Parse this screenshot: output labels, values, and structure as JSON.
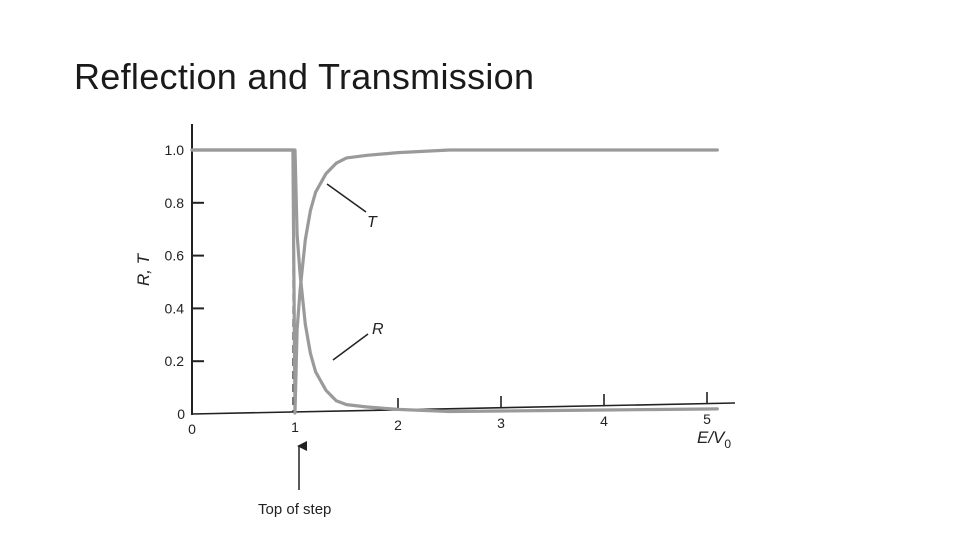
{
  "slide": {
    "title": "Reflection and Transmission"
  },
  "chart_data": {
    "type": "line",
    "title": "",
    "xlabel": "E/V",
    "xlabel_subscript": "0",
    "ylabel": "R, T",
    "xlim": [
      0,
      5.3
    ],
    "ylim": [
      0,
      1.1
    ],
    "x_ticks": [
      0,
      1,
      2,
      3,
      4,
      5
    ],
    "x_tick_labels": [
      "0",
      "1",
      "2",
      "3",
      "4",
      "5"
    ],
    "y_ticks": [
      0,
      0.2,
      0.4,
      0.6,
      0.8,
      1.0
    ],
    "y_tick_labels": [
      "0",
      "0.2",
      "0.4",
      "0.6",
      "0.8",
      "1.0"
    ],
    "grid": false,
    "series": [
      {
        "name": "T",
        "color": "#9a9a9a",
        "x": [
          0,
          0.98,
          1.0,
          1.02,
          1.05,
          1.1,
          1.15,
          1.2,
          1.3,
          1.4,
          1.5,
          1.7,
          2.0,
          2.5,
          3.0,
          3.5,
          4.0,
          4.5,
          5.0,
          5.1
        ],
        "y": [
          1.0,
          1.0,
          0.0,
          0.32,
          0.47,
          0.66,
          0.77,
          0.84,
          0.91,
          0.95,
          0.97,
          0.98,
          0.99,
          1.0,
          1.0,
          1.0,
          1.0,
          1.0,
          1.0,
          1.0
        ]
      },
      {
        "name": "R",
        "color": "#9a9a9a",
        "x": [
          0,
          0.98,
          1.0,
          1.02,
          1.05,
          1.1,
          1.15,
          1.2,
          1.3,
          1.4,
          1.5,
          1.7,
          2.0,
          2.5,
          3.0,
          3.5,
          4.0,
          4.5,
          5.0,
          5.1
        ],
        "y": [
          1.0,
          1.0,
          1.0,
          0.68,
          0.53,
          0.34,
          0.23,
          0.16,
          0.09,
          0.05,
          0.03,
          0.02,
          0.01,
          0.0,
          0.0,
          0.0,
          0.0,
          0.0,
          0.0,
          0.0
        ]
      }
    ],
    "annotations": [
      {
        "text": "T",
        "points_to_series": "T",
        "at_x": 1.3
      },
      {
        "text": "R",
        "points_to_series": "R",
        "at_x": 1.4
      },
      {
        "text": "Top of step",
        "points_to_x": 1
      }
    ]
  }
}
